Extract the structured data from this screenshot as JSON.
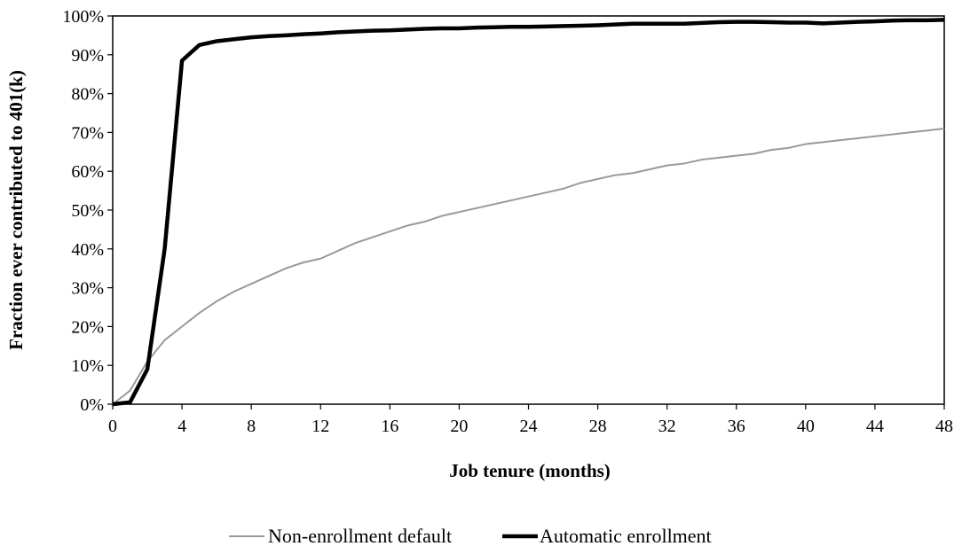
{
  "chart_data": {
    "type": "line",
    "xlabel": "Job tenure (months)",
    "ylabel": "Fraction ever contributed to 401(k)",
    "xlim": [
      0,
      48
    ],
    "ylim": [
      0,
      100
    ],
    "x_ticks": [
      0,
      4,
      8,
      12,
      16,
      20,
      24,
      28,
      32,
      36,
      40,
      44,
      48
    ],
    "y_ticks": [
      0,
      10,
      20,
      30,
      40,
      50,
      60,
      70,
      80,
      90,
      100
    ],
    "x_tick_labels": [
      "0",
      "4",
      "8",
      "12",
      "16",
      "20",
      "24",
      "28",
      "32",
      "36",
      "40",
      "44",
      "48"
    ],
    "y_tick_labels": [
      "0%",
      "10%",
      "20%",
      "30%",
      "40%",
      "50%",
      "60%",
      "70%",
      "80%",
      "90%",
      "100%"
    ],
    "grid": false,
    "legend_position": "bottom",
    "series": [
      {
        "name": "Non-enrollment default",
        "color": "#999999",
        "x": [
          0,
          1,
          2,
          3,
          4,
          5,
          6,
          7,
          8,
          9,
          10,
          11,
          12,
          13,
          14,
          15,
          16,
          17,
          18,
          19,
          20,
          21,
          22,
          23,
          24,
          25,
          26,
          27,
          28,
          29,
          30,
          31,
          32,
          33,
          34,
          35,
          36,
          37,
          38,
          39,
          40,
          41,
          42,
          43,
          44,
          45,
          46,
          47,
          48
        ],
        "y": [
          0,
          3.5,
          11,
          16.5,
          20,
          23.5,
          26.5,
          29,
          31,
          33,
          35,
          36.5,
          37.5,
          39.5,
          41.5,
          43,
          44.5,
          46,
          47,
          48.5,
          49.5,
          50.5,
          51.5,
          52.5,
          53.5,
          54.5,
          55.5,
          57,
          58,
          59,
          59.5,
          60.5,
          61.5,
          62,
          63,
          63.5,
          64,
          64.5,
          65.5,
          66,
          67,
          67.5,
          68,
          68.5,
          69,
          69.5,
          70,
          70.5,
          71
        ]
      },
      {
        "name": "Automatic enrollment",
        "color": "#000000",
        "x": [
          0,
          1,
          2,
          3,
          4,
          5,
          6,
          7,
          8,
          9,
          10,
          11,
          12,
          13,
          14,
          15,
          16,
          17,
          18,
          19,
          20,
          21,
          22,
          23,
          24,
          25,
          26,
          27,
          28,
          29,
          30,
          31,
          32,
          33,
          34,
          35,
          36,
          37,
          38,
          39,
          40,
          41,
          42,
          43,
          44,
          45,
          46,
          47,
          48
        ],
        "y": [
          0,
          0.5,
          9,
          40,
          88.5,
          92.5,
          93.5,
          94,
          94.5,
          94.8,
          95,
          95.3,
          95.5,
          95.8,
          96,
          96.2,
          96.3,
          96.5,
          96.7,
          96.8,
          96.8,
          97,
          97.1,
          97.2,
          97.2,
          97.3,
          97.4,
          97.5,
          97.6,
          97.8,
          98,
          98,
          98,
          98,
          98.2,
          98.4,
          98.5,
          98.5,
          98.4,
          98.3,
          98.3,
          98.1,
          98.3,
          98.5,
          98.6,
          98.8,
          98.9,
          98.9,
          99
        ]
      }
    ]
  }
}
